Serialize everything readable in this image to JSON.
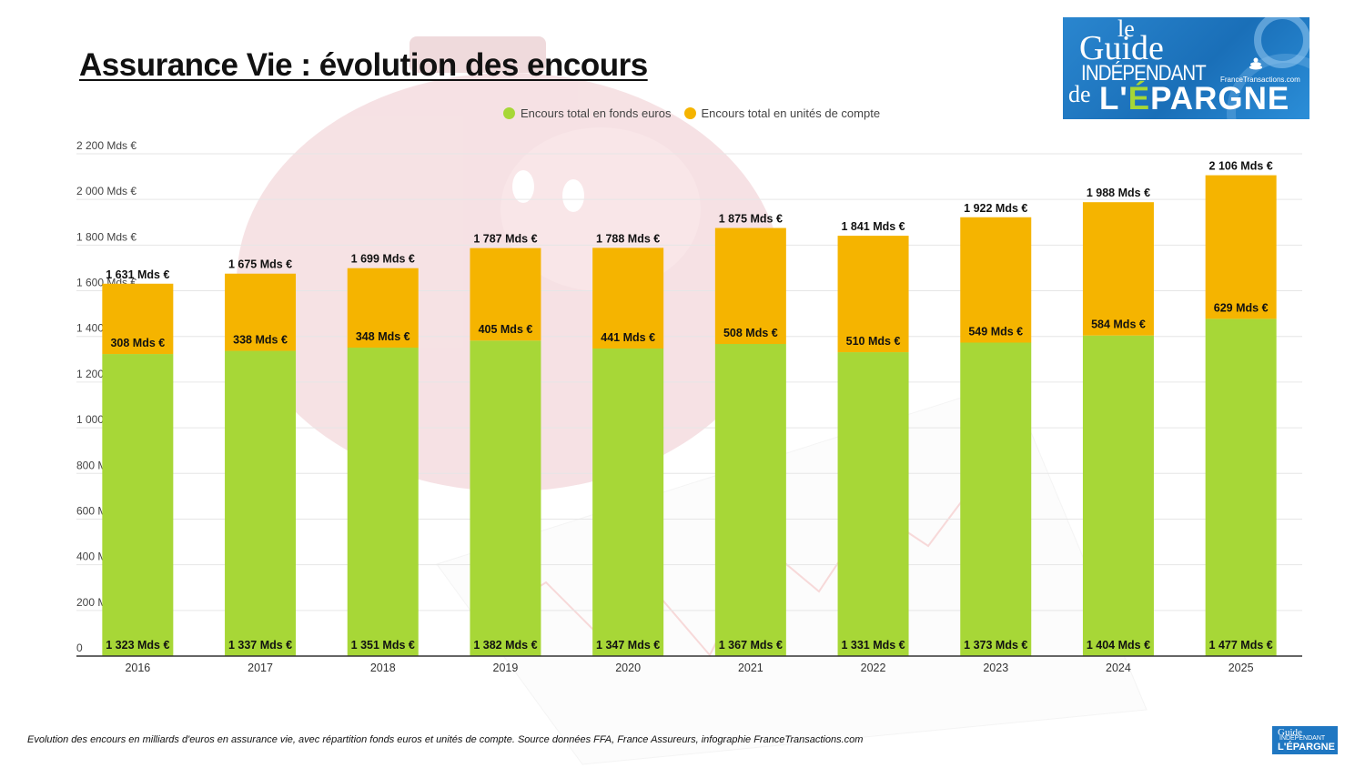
{
  "header": {
    "title": "Assurance Vie : évolution des encours"
  },
  "logo": {
    "line_le": "le",
    "line_guide": "Guide",
    "line_indep": "INDÉPENDANT",
    "line_de": "de",
    "line_epargne_pre": "L'",
    "line_epargne_e": "É",
    "line_epargne_post": "PARGNE",
    "site": "FranceTransactions.com"
  },
  "footer": {
    "caption": "Evolution des encours en milliards d'euros en assurance vie, avec répartition fonds euros et unités de compte. Source données FFA, France Assureurs, infographie FranceTransactions.com"
  },
  "colors": {
    "fonds_euros": "#a7d737",
    "unites_compte": "#f5b400",
    "grid": "#e6e6e6",
    "axis": "#333333"
  },
  "chart_data": {
    "type": "bar",
    "stacked": true,
    "title": "Assurance Vie : évolution des encours",
    "categories": [
      "2016",
      "2017",
      "2018",
      "2019",
      "2020",
      "2021",
      "2022",
      "2023",
      "2024",
      "2025"
    ],
    "series": [
      {
        "name": "Encours total en fonds euros",
        "values": [
          1323,
          1337,
          1351,
          1382,
          1347,
          1367,
          1331,
          1373,
          1404,
          1477
        ],
        "labels": [
          "1 323 Mds €",
          "1 337 Mds €",
          "1 351 Mds €",
          "1 382 Mds €",
          "1 347 Mds €",
          "1 367 Mds €",
          "1 331 Mds €",
          "1 373 Mds €",
          "1 404 Mds €",
          "1 477 Mds €"
        ]
      },
      {
        "name": "Encours total en unités de compte",
        "values": [
          308,
          338,
          348,
          405,
          441,
          508,
          510,
          549,
          584,
          629
        ],
        "labels": [
          "308 Mds €",
          "338 Mds €",
          "348 Mds €",
          "405 Mds €",
          "441 Mds €",
          "508 Mds €",
          "510 Mds €",
          "549 Mds €",
          "584 Mds €",
          "629 Mds €"
        ]
      }
    ],
    "totals": [
      1631,
      1675,
      1699,
      1787,
      1788,
      1875,
      1841,
      1922,
      1988,
      2106
    ],
    "total_labels": [
      "1 631 Mds €",
      "1 675 Mds €",
      "1 699 Mds €",
      "1 787 Mds €",
      "1 788 Mds €",
      "1 875 Mds €",
      "1 841 Mds €",
      "1 922 Mds €",
      "1 988 Mds €",
      "2 106 Mds €"
    ],
    "yticks": [
      0,
      200,
      400,
      600,
      800,
      1000,
      1200,
      1400,
      1600,
      1800,
      2000,
      2200
    ],
    "ytick_labels": [
      "0",
      "200 Mds €",
      "400 Mds €",
      "600 Mds €",
      "800 Mds €",
      "1 000 Mds €",
      "1 200 Mds €",
      "1 400 Mds €",
      "1 600 Mds €",
      "1 800 Mds €",
      "2 000 Mds €",
      "2 200 Mds €"
    ],
    "ylim": [
      0,
      2200
    ],
    "grid": true,
    "legend_position": "top-center"
  }
}
